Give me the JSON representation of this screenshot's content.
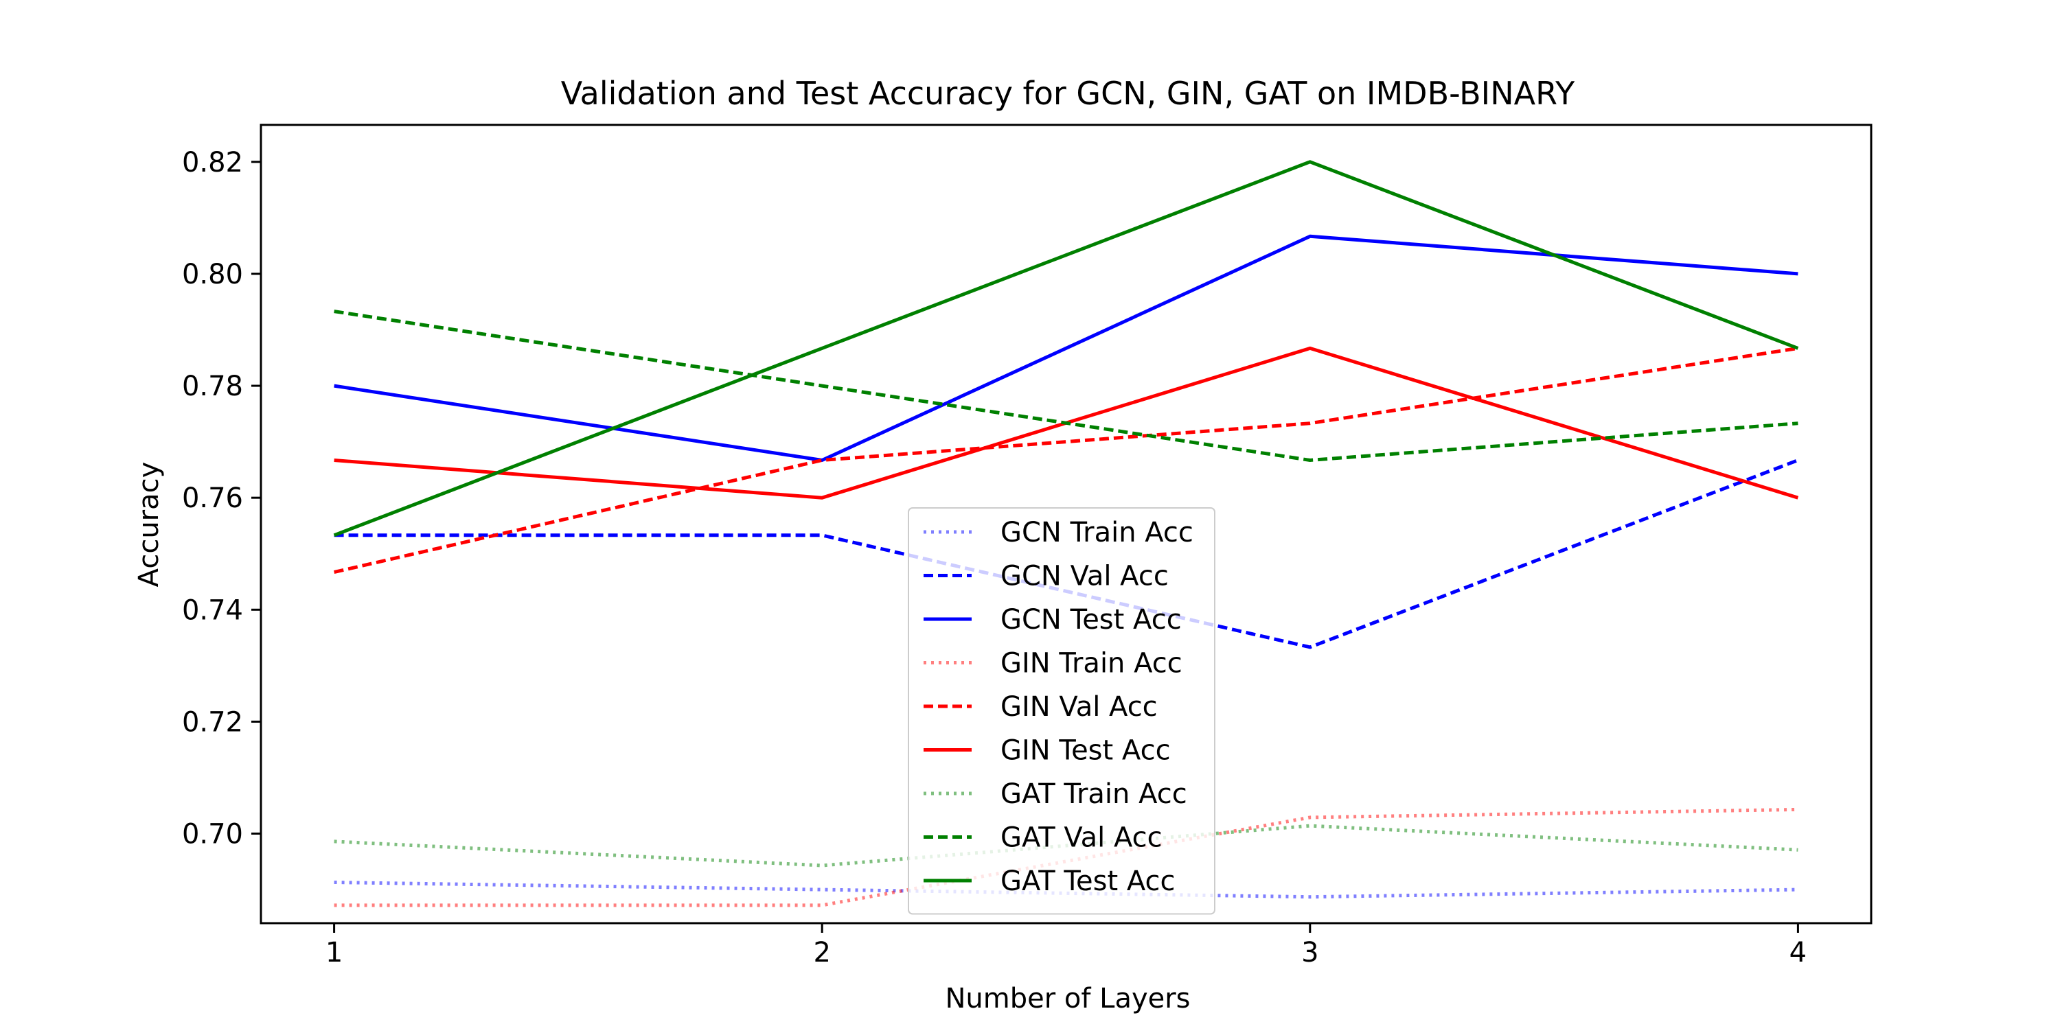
{
  "chart_data": {
    "type": "line",
    "title": "Validation and Test Accuracy for GCN, GIN, GAT on IMDB-BINARY",
    "xlabel": "Number of Layers",
    "ylabel": "Accuracy",
    "x": [
      1,
      2,
      3,
      4
    ],
    "xticks": [
      "1",
      "2",
      "3",
      "4"
    ],
    "yticks": [
      "0.70",
      "0.72",
      "0.74",
      "0.76",
      "0.78",
      "0.80",
      "0.82"
    ],
    "xlim": [
      0.85,
      4.15
    ],
    "ylim": [
      0.684,
      0.8266
    ],
    "grid": false,
    "legend_position": "lower-center",
    "series": [
      {
        "name": "GCN Train Acc",
        "color": "#0000ff",
        "style": "dotted",
        "opacity": 0.5,
        "values": [
          0.6913,
          0.69,
          0.6887,
          0.69
        ]
      },
      {
        "name": "GCN Val Acc",
        "color": "#0000ff",
        "style": "dashed",
        "opacity": 1,
        "values": [
          0.7533,
          0.7533,
          0.7333,
          0.7667
        ]
      },
      {
        "name": "GCN Test Acc",
        "color": "#0000ff",
        "style": "solid",
        "opacity": 1,
        "values": [
          0.78,
          0.7667,
          0.8067,
          0.8
        ]
      },
      {
        "name": "GIN Train Acc",
        "color": "#ff0000",
        "style": "dotted",
        "opacity": 0.5,
        "values": [
          0.6872,
          0.6872,
          0.7029,
          0.7043
        ]
      },
      {
        "name": "GIN Val Acc",
        "color": "#ff0000",
        "style": "dashed",
        "opacity": 1,
        "values": [
          0.7467,
          0.7667,
          0.7733,
          0.7867
        ]
      },
      {
        "name": "GIN Test Acc",
        "color": "#ff0000",
        "style": "solid",
        "opacity": 1,
        "values": [
          0.7667,
          0.76,
          0.7867,
          0.76
        ]
      },
      {
        "name": "GAT Train Acc",
        "color": "#008000",
        "style": "dotted",
        "opacity": 0.5,
        "values": [
          0.6986,
          0.6943,
          0.7014,
          0.6971
        ]
      },
      {
        "name": "GAT Val Acc",
        "color": "#008000",
        "style": "dashed",
        "opacity": 1,
        "values": [
          0.7933,
          0.78,
          0.7667,
          0.7733
        ]
      },
      {
        "name": "GAT Test Acc",
        "color": "#008000",
        "style": "solid",
        "opacity": 1,
        "values": [
          0.7533,
          0.7867,
          0.82,
          0.7867
        ]
      }
    ]
  }
}
